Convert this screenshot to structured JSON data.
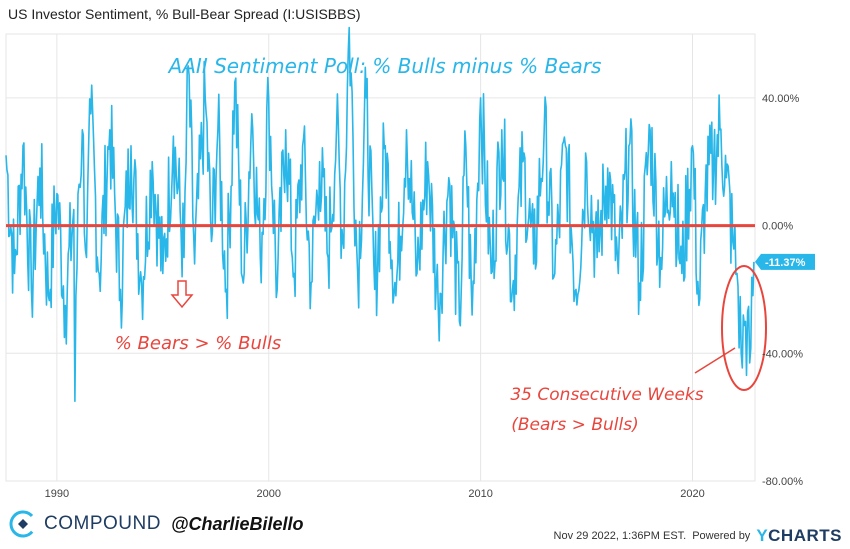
{
  "title": "US Investor Sentiment, % Bull-Bear Spread (I:USISBBS)",
  "footer": {
    "brand_name": "COMPOUND",
    "brand_handle": "@CharlieBilello",
    "timestamp": "Nov 29 2022, 1:36PM EST.",
    "powered_by": "Powered by",
    "provider": "CHARTS",
    "provider_initial": "Y"
  },
  "colors": {
    "series": "#29b6e8",
    "zero_line": "#e8463d",
    "annotation_red": "#e8463d",
    "annotation_blue": "#29b6e8",
    "grid": "#e6e6e6",
    "axis_text": "#444444"
  },
  "chart_data": {
    "type": "line",
    "title": "US Investor Sentiment, % Bull-Bear Spread (I:USISBBS)",
    "ylim": [
      -80,
      60
    ],
    "xlim": [
      1987.6,
      2022.95
    ],
    "y_ticks": [
      40,
      0,
      -40,
      -80
    ],
    "y_tick_labels": [
      "40.00%",
      "0.00%",
      "-40.00%",
      "-80.00%"
    ],
    "x_ticks": [
      1990,
      2000,
      2010,
      2020
    ],
    "x_tick_labels": [
      "1990",
      "2000",
      "2010",
      "2020"
    ],
    "grid": true,
    "last_value": -11.37,
    "last_value_label": "-11.37%",
    "series": [
      {
        "x": [
          1987.6,
          1988.0,
          1988.4,
          1988.8,
          1989.2,
          1989.6,
          1990.0,
          1990.4,
          1990.8,
          1990.85,
          1991.0,
          1991.2,
          1991.4,
          1991.6,
          1992.0,
          1992.5,
          1993.0,
          1993.5,
          1994.0,
          1994.5,
          1995.0,
          1995.5,
          1996.0,
          1996.2,
          1996.5,
          1997.0,
          1997.3,
          1997.6,
          1998.0,
          1998.4,
          1998.8,
          1999.2,
          1999.6,
          2000.0,
          2000.4,
          2000.8,
          2001.2,
          2001.6,
          2002.0,
          2002.4,
          2002.8,
          2003.2,
          2003.5,
          2003.8,
          2004.2,
          2004.6,
          2005.0,
          2005.5,
          2006.0,
          2006.5,
          2007.0,
          2007.5,
          2008.0,
          2008.5,
          2009.0,
          2009.3,
          2009.6,
          2010.0,
          2010.5,
          2011.0,
          2011.5,
          2012.0,
          2012.5,
          2013.0,
          2013.5,
          2014.0,
          2014.5,
          2015.0,
          2015.5,
          2016.0,
          2016.5,
          2017.0,
          2017.5,
          2018.0,
          2018.5,
          2019.0,
          2019.5,
          2020.0,
          2020.3,
          2020.6,
          2021.0,
          2021.3,
          2021.6,
          2021.9,
          2022.1,
          2022.3,
          2022.5,
          2022.7,
          2022.9
        ],
        "values": [
          22,
          -15,
          25,
          -20,
          18,
          -22,
          10,
          -25,
          5,
          -55,
          10,
          30,
          -10,
          35,
          -15,
          30,
          -20,
          25,
          -18,
          20,
          -15,
          28,
          -10,
          50,
          -12,
          40,
          -5,
          30,
          -20,
          45,
          -18,
          35,
          -10,
          40,
          -20,
          30,
          -15,
          25,
          -18,
          20,
          -10,
          30,
          -5,
          62,
          -15,
          40,
          -20,
          25,
          -22,
          30,
          -15,
          20,
          -25,
          15,
          -30,
          25,
          -28,
          40,
          -15,
          30,
          -20,
          20,
          -12,
          30,
          -15,
          25,
          -20,
          20,
          -10,
          18,
          -15,
          25,
          -18,
          30,
          -10,
          20,
          -15,
          25,
          -25,
          10,
          20,
          30,
          15,
          -5,
          -15,
          -40,
          -30,
          -43,
          -11.37
        ]
      }
    ],
    "annotations": {
      "main_heading": "AAII Sentiment Poll: % Bulls minus % Bears",
      "bears_label": "% Bears > % Bulls",
      "streak_line1": "35 Consecutive Weeks",
      "streak_line2": "(Bears > Bulls)"
    }
  }
}
